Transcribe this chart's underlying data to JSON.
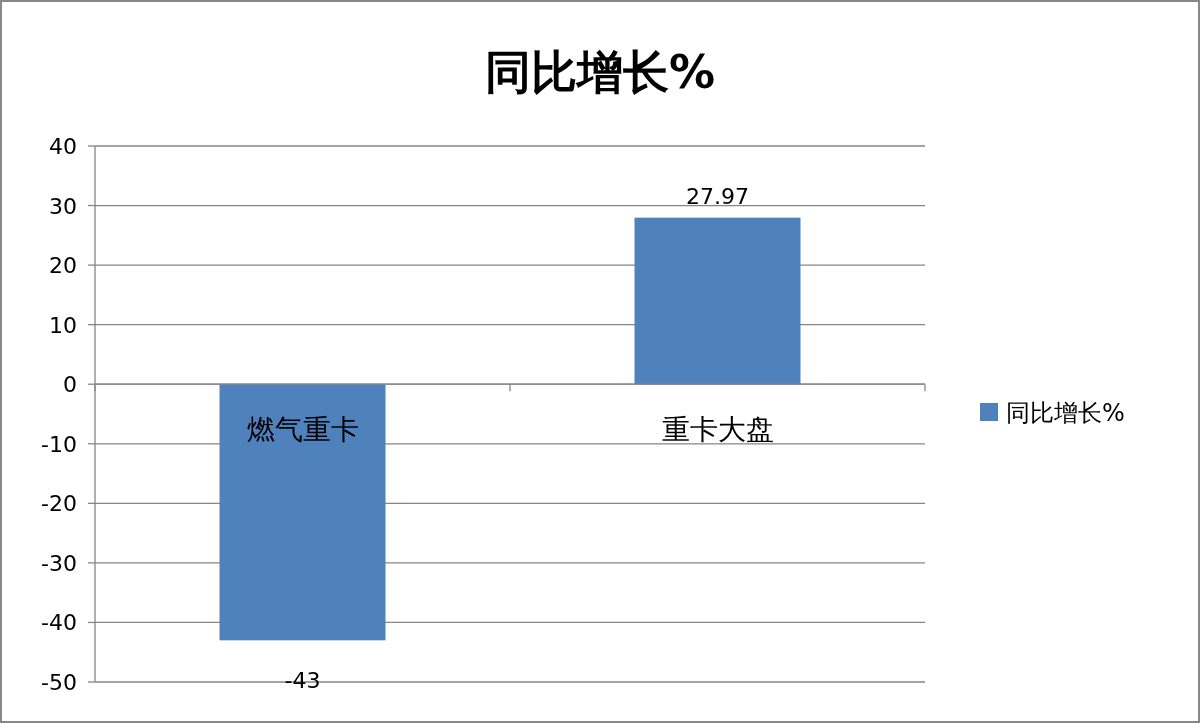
{
  "chart_data": {
    "type": "bar",
    "title": "同比增长%",
    "categories": [
      "燃气重卡",
      "重卡大盘"
    ],
    "series": [
      {
        "name": "同比增长%",
        "color": "#4f81bd",
        "values": [
          -43,
          27.97
        ]
      }
    ],
    "ylim": [
      -50,
      40
    ],
    "yticks": [
      -50,
      -40,
      -30,
      -20,
      -10,
      0,
      10,
      20,
      30,
      40
    ],
    "grid": "y",
    "legend": "right",
    "data_labels": true
  }
}
